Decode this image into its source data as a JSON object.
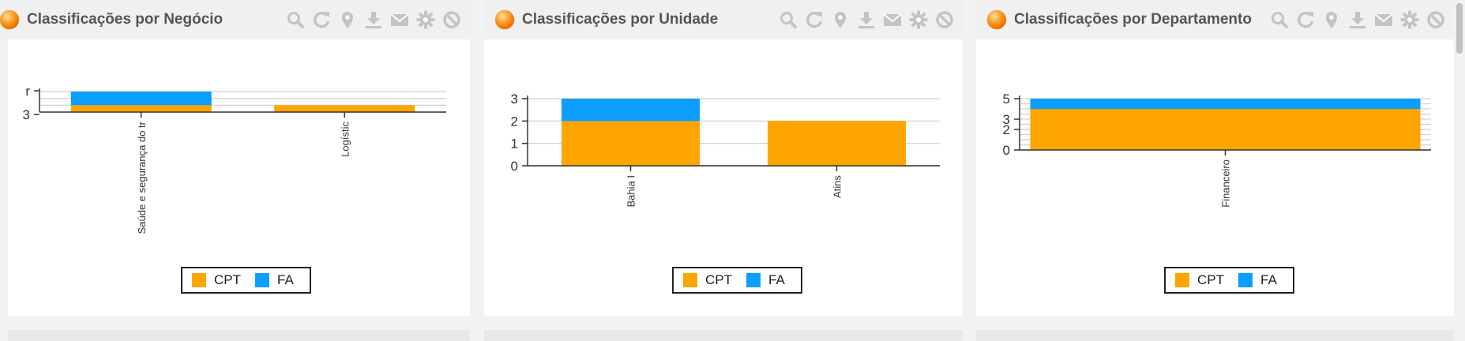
{
  "colors": {
    "cpt": "#FFA500",
    "fa": "#0B9EFF"
  },
  "toolbar_icons": [
    "search-icon",
    "refresh-icon",
    "location-pin-icon",
    "download-icon",
    "mail-icon",
    "gear-icon",
    "block-icon"
  ],
  "panels": [
    {
      "title": "Classificações por Negócio",
      "legend": {
        "cpt": "CPT",
        "fa": "FA"
      }
    },
    {
      "title": "Classificações por Unidade",
      "legend": {
        "cpt": "CPT",
        "fa": "FA"
      }
    },
    {
      "title": "Classificações por Departamento",
      "legend": {
        "cpt": "CPT",
        "fa": "FA"
      }
    }
  ],
  "chart_data": [
    {
      "type": "bar",
      "stacked": true,
      "categories": [
        "Saúde e segurança do tr",
        "Logístic"
      ],
      "series": [
        {
          "name": "CPT",
          "values": [
            1,
            1
          ]
        },
        {
          "name": "FA",
          "values": [
            2,
            0
          ]
        }
      ],
      "yticks": [
        "r",
        "3"
      ],
      "ylim": [
        0,
        3
      ],
      "grid": true,
      "legend_position": "bottom"
    },
    {
      "type": "bar",
      "stacked": true,
      "categories": [
        "Bahia I",
        "Atins"
      ],
      "series": [
        {
          "name": "CPT",
          "values": [
            2,
            2
          ]
        },
        {
          "name": "FA",
          "values": [
            1,
            0
          ]
        }
      ],
      "yticks": [
        "0",
        "1",
        "2",
        "3"
      ],
      "ylim": [
        0,
        3
      ],
      "grid": true,
      "legend_position": "bottom"
    },
    {
      "type": "bar",
      "stacked": true,
      "categories": [
        "Financeiro"
      ],
      "series": [
        {
          "name": "CPT",
          "values": [
            4
          ]
        },
        {
          "name": "FA",
          "values": [
            1
          ]
        }
      ],
      "yticks": [
        "0",
        "2",
        "3",
        "5"
      ],
      "ylim": [
        0,
        5
      ],
      "grid": true,
      "legend_position": "bottom"
    }
  ]
}
